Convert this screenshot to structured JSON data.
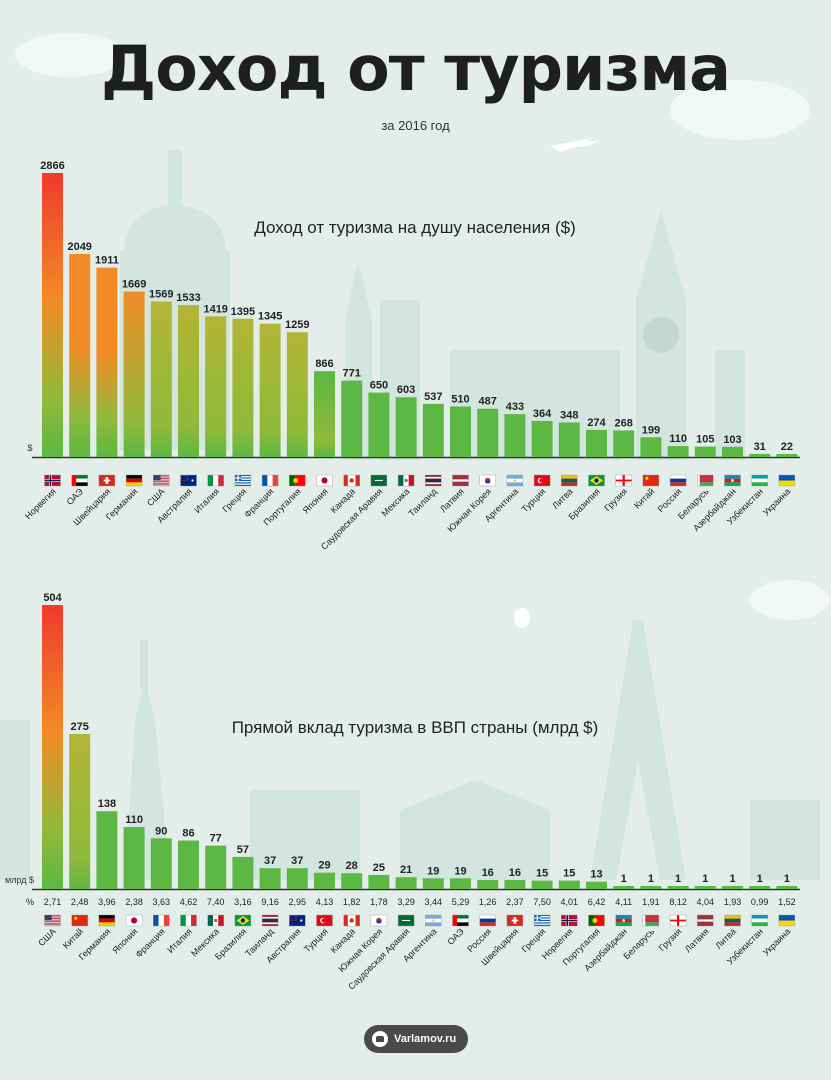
{
  "header": {
    "title": "Доход от туризма",
    "subtitle": "за 2016 год"
  },
  "footer": {
    "brand": "Varlamov.ru"
  },
  "colors": {
    "bar_top_high": "#f03a2e",
    "bar_mid": "#f28b25",
    "bar_low": "#5db744",
    "baseline": "#333333"
  },
  "chart_data": [
    {
      "type": "bar",
      "title": "Доход от туризма на душу населения ($)",
      "ylabel": "$",
      "categories": [
        "Норвегия",
        "ОАЭ",
        "Швейцария",
        "Германия",
        "США",
        "Австралия",
        "Италия",
        "Греция",
        "Франция",
        "Португалия",
        "Япония",
        "Канада",
        "Саудовская Аравия",
        "Мексика",
        "Таиланд",
        "Латвия",
        "Южная Корея",
        "Аргентина",
        "Турция",
        "Литва",
        "Бразилия",
        "Грузия",
        "Китай",
        "Россия",
        "Беларусь",
        "Азербайджан",
        "Узбекистан",
        "Украина"
      ],
      "values": [
        2866,
        2049,
        1911,
        1669,
        1569,
        1533,
        1419,
        1395,
        1345,
        1259,
        866,
        771,
        650,
        603,
        537,
        510,
        487,
        433,
        364,
        348,
        274,
        268,
        199,
        110,
        105,
        103,
        31,
        22
      ],
      "flags": [
        "NO",
        "AE",
        "CH",
        "DE",
        "US",
        "AU",
        "IT",
        "GR",
        "FR",
        "PT",
        "JP",
        "CA",
        "SA",
        "MX",
        "TH",
        "LV",
        "KR",
        "AR",
        "TR",
        "LT",
        "BR",
        "GE",
        "CN",
        "RU",
        "BY",
        "AZ",
        "UZ",
        "UA"
      ],
      "ylim": [
        0,
        2866
      ]
    },
    {
      "type": "bar",
      "title": "Прямой вклад туризма в ВВП страны (млрд $)",
      "ylabel": "млрд $",
      "percent_label": "%",
      "categories": [
        "США",
        "Китай",
        "Германия",
        "Япония",
        "Франция",
        "Италия",
        "Мексика",
        "Бразилия",
        "Таиланд",
        "Австралия",
        "Турция",
        "Канада",
        "Южная Корея",
        "Саудовская Аравия",
        "Аргентина",
        "ОАЭ",
        "Россия",
        "Швейцария",
        "Греция",
        "Норвегия",
        "Португалия",
        "Азербайджан",
        "Беларусь",
        "Грузия",
        "Латвия",
        "Литва",
        "Узбекистан",
        "Украина"
      ],
      "values": [
        504,
        275,
        138,
        110,
        90,
        86,
        77,
        57,
        37,
        37,
        29,
        28,
        25,
        21,
        19,
        19,
        16,
        16,
        15,
        15,
        13,
        1,
        1,
        1,
        1,
        1,
        1,
        1
      ],
      "percents": [
        "2,71",
        "2,48",
        "3,96",
        "2,38",
        "3,63",
        "4,62",
        "7,40",
        "3,16",
        "9,16",
        "2,95",
        "4,13",
        "1,82",
        "1,78",
        "3,29",
        "3,44",
        "5,29",
        "1,26",
        "2,37",
        "7,50",
        "4,01",
        "6,42",
        "4,11",
        "1,91",
        "8,12",
        "4,04",
        "1,93",
        "0,99",
        "1,52"
      ],
      "flags": [
        "US",
        "CN",
        "DE",
        "JP",
        "FR",
        "IT",
        "MX",
        "BR",
        "TH",
        "AU",
        "TR",
        "CA",
        "KR",
        "SA",
        "AR",
        "AE",
        "RU",
        "CH",
        "GR",
        "NO",
        "PT",
        "AZ",
        "BY",
        "GE",
        "LV",
        "LT",
        "UZ",
        "UA"
      ],
      "ylim": [
        0,
        504
      ]
    }
  ]
}
